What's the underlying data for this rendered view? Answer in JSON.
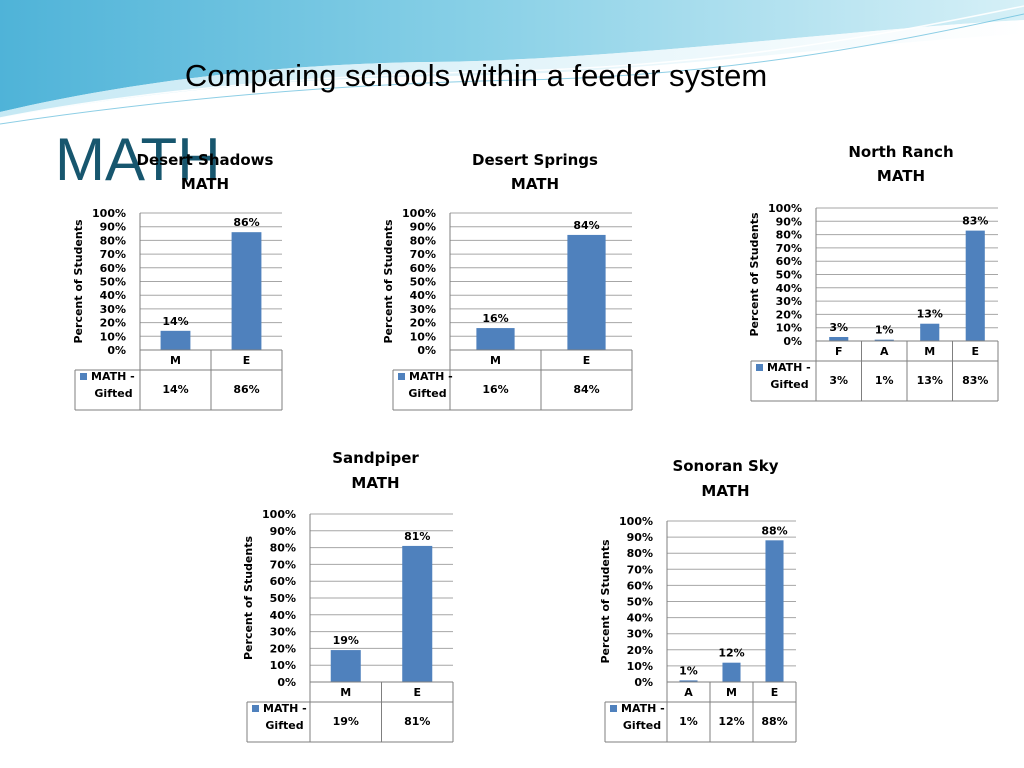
{
  "slide": {
    "title": "Comparing schools within a feeder system",
    "subject": "MATH"
  },
  "colors": {
    "bar": "#4f81bd",
    "grid": "#a6a6a6",
    "heading": "#17566e"
  },
  "chart_data": [
    {
      "type": "bar",
      "title": [
        "Desert Shadows",
        "MATH"
      ],
      "ylabel": "Percent of Students",
      "categories": [
        "M",
        "E"
      ],
      "series": [
        {
          "name": "MATH - Gifted",
          "values": [
            14,
            86
          ]
        }
      ],
      "data_labels": [
        "14%",
        "86%"
      ],
      "ylim": [
        0,
        100
      ],
      "yticks": [
        "0%",
        "10%",
        "20%",
        "30%",
        "40%",
        "50%",
        "60%",
        "70%",
        "80%",
        "90%",
        "100%"
      ],
      "grid": true,
      "legend": "data-table"
    },
    {
      "type": "bar",
      "title": [
        "Desert Springs",
        "MATH"
      ],
      "ylabel": "Percent of Students",
      "categories": [
        "M",
        "E"
      ],
      "series": [
        {
          "name": "MATH - Gifted",
          "values": [
            16,
            84
          ]
        }
      ],
      "data_labels": [
        "16%",
        "84%"
      ],
      "ylim": [
        0,
        100
      ],
      "yticks": [
        "0%",
        "10%",
        "20%",
        "30%",
        "40%",
        "50%",
        "60%",
        "70%",
        "80%",
        "90%",
        "100%"
      ],
      "grid": true,
      "legend": "data-table"
    },
    {
      "type": "bar",
      "title": [
        "North Ranch",
        "MATH"
      ],
      "ylabel": "Percent of Students",
      "categories": [
        "F",
        "A",
        "M",
        "E"
      ],
      "series": [
        {
          "name": "MATH - Gifted",
          "values": [
            3,
            1,
            13,
            83
          ]
        }
      ],
      "data_labels": [
        "3%",
        "1%",
        "13%",
        "83%"
      ],
      "ylim": [
        0,
        100
      ],
      "yticks": [
        "0%",
        "10%",
        "20%",
        "30%",
        "40%",
        "50%",
        "60%",
        "70%",
        "80%",
        "90%",
        "100%"
      ],
      "grid": true,
      "legend": "data-table"
    },
    {
      "type": "bar",
      "title": [
        "Sandpiper",
        "MATH"
      ],
      "ylabel": "Percent of Students",
      "categories": [
        "M",
        "E"
      ],
      "series": [
        {
          "name": "MATH - Gifted",
          "values": [
            19,
            81
          ]
        }
      ],
      "data_labels": [
        "19%",
        "81%"
      ],
      "ylim": [
        0,
        100
      ],
      "yticks": [
        "0%",
        "10%",
        "20%",
        "30%",
        "40%",
        "50%",
        "60%",
        "70%",
        "80%",
        "90%",
        "100%"
      ],
      "grid": true,
      "legend": "data-table"
    },
    {
      "type": "bar",
      "title": [
        "Sonoran Sky",
        "MATH"
      ],
      "ylabel": "Percent of Students",
      "categories": [
        "A",
        "M",
        "E"
      ],
      "series": [
        {
          "name": "MATH - Gifted",
          "values": [
            1,
            12,
            88
          ]
        }
      ],
      "data_labels": [
        "1%",
        "12%",
        "88%"
      ],
      "ylim": [
        0,
        100
      ],
      "yticks": [
        "0%",
        "10%",
        "20%",
        "30%",
        "40%",
        "50%",
        "60%",
        "70%",
        "80%",
        "90%",
        "100%"
      ],
      "grid": true,
      "legend": "data-table"
    }
  ]
}
